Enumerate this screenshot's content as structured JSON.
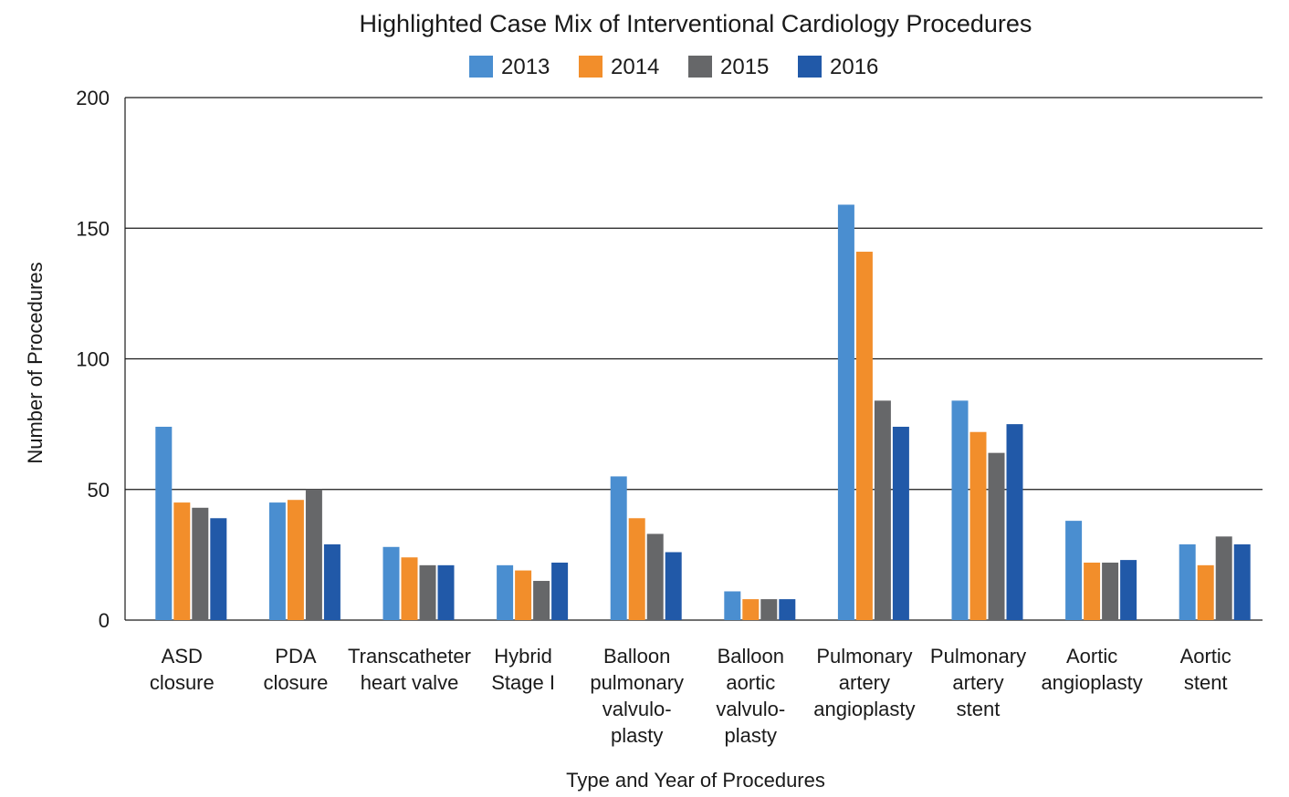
{
  "chart_data": {
    "type": "bar",
    "title": "Highlighted Case Mix of Interventional Cardiology Procedures",
    "xlabel": "Type and Year of Procedures",
    "ylabel": "Number of Procedures",
    "ylim": [
      0,
      200
    ],
    "yticks": [
      "0",
      "50",
      "100",
      "150",
      "200"
    ],
    "grid": true,
    "legend_position": "top-center",
    "categories": [
      [
        "ASD",
        "closure"
      ],
      [
        "PDA",
        "closure"
      ],
      [
        "Transcatheter",
        "heart valve"
      ],
      [
        "Hybrid",
        "Stage I"
      ],
      [
        "Balloon",
        "pulmonary",
        "valvulo-",
        "plasty"
      ],
      [
        "Balloon",
        "aortic",
        "valvulo-",
        "plasty"
      ],
      [
        "Pulmonary",
        "artery",
        "angioplasty"
      ],
      [
        "Pulmonary",
        "artery",
        "stent"
      ],
      [
        "Aortic",
        "angioplasty"
      ],
      [
        "Aortic",
        "stent"
      ]
    ],
    "series": [
      {
        "name": "2013",
        "color": "#4A8ED0",
        "values": [
          74,
          45,
          28,
          21,
          55,
          11,
          159,
          84,
          38,
          29
        ]
      },
      {
        "name": "2014",
        "color": "#F28E2B",
        "values": [
          45,
          46,
          24,
          19,
          39,
          8,
          141,
          72,
          22,
          21
        ]
      },
      {
        "name": "2015",
        "color": "#666769",
        "values": [
          43,
          50,
          21,
          15,
          33,
          8,
          84,
          64,
          22,
          32
        ]
      },
      {
        "name": "2016",
        "color": "#2159A8",
        "values": [
          39,
          29,
          21,
          22,
          26,
          8,
          74,
          75,
          23,
          29
        ]
      }
    ]
  }
}
